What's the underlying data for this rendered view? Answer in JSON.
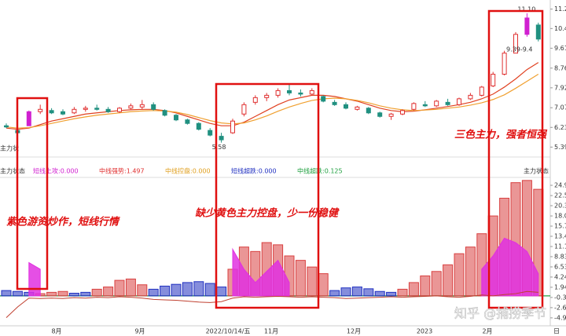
{
  "chart_data": [
    {
      "type": "candlestick",
      "ylim": [
        5.1,
        11.5
      ],
      "yticks": [
        11.28,
        10.45,
        9.61,
        8.76,
        7.92,
        7.07,
        6.23,
        5.39
      ],
      "up_color": "#e03030",
      "down_color": "#209080",
      "highlight_color": "#d020d0",
      "highlight": [
        2,
        46
      ],
      "ohlc": [
        [
          6.3,
          6.4,
          6.2,
          6.25
        ],
        [
          6.1,
          6.2,
          5.9,
          6.0
        ],
        [
          6.3,
          6.95,
          6.3,
          6.9
        ],
        [
          6.9,
          7.2,
          6.8,
          7.0
        ],
        [
          6.95,
          7.05,
          6.8,
          6.85
        ],
        [
          6.9,
          7.0,
          6.75,
          6.8
        ],
        [
          6.85,
          7.1,
          6.8,
          7.0
        ],
        [
          7.0,
          7.15,
          6.9,
          7.05
        ],
        [
          7.05,
          7.2,
          6.95,
          7.0
        ],
        [
          7.0,
          7.1,
          6.85,
          6.9
        ],
        [
          6.9,
          7.1,
          6.85,
          7.05
        ],
        [
          7.05,
          7.25,
          7.0,
          7.15
        ],
        [
          7.1,
          7.4,
          7.0,
          7.2
        ],
        [
          7.2,
          7.3,
          6.95,
          7.0
        ],
        [
          6.95,
          7.0,
          6.7,
          6.75
        ],
        [
          6.75,
          6.8,
          6.5,
          6.55
        ],
        [
          6.55,
          6.6,
          6.35,
          6.4
        ],
        [
          6.4,
          6.45,
          6.1,
          6.15
        ],
        [
          6.1,
          6.2,
          5.85,
          5.9
        ],
        [
          5.85,
          6.0,
          5.58,
          5.7
        ],
        [
          6.0,
          6.6,
          5.95,
          6.5
        ],
        [
          6.8,
          7.3,
          6.7,
          7.2
        ],
        [
          7.3,
          7.6,
          7.2,
          7.5
        ],
        [
          7.5,
          7.7,
          7.35,
          7.6
        ],
        [
          7.6,
          7.9,
          7.5,
          7.8
        ],
        [
          7.8,
          8.1,
          7.6,
          7.7
        ],
        [
          7.7,
          7.85,
          7.55,
          7.65
        ],
        [
          7.65,
          7.9,
          7.6,
          7.8
        ],
        [
          7.55,
          7.6,
          7.3,
          7.35
        ],
        [
          7.3,
          7.4,
          7.15,
          7.2
        ],
        [
          7.2,
          7.3,
          7.0,
          7.05
        ],
        [
          7.0,
          7.15,
          6.95,
          7.1
        ],
        [
          7.05,
          7.1,
          6.8,
          6.85
        ],
        [
          6.85,
          6.9,
          6.65,
          6.7
        ],
        [
          6.7,
          6.85,
          6.55,
          6.8
        ],
        [
          6.8,
          7.0,
          6.75,
          6.95
        ],
        [
          7.0,
          7.3,
          6.95,
          7.25
        ],
        [
          7.2,
          7.35,
          7.1,
          7.15
        ],
        [
          7.15,
          7.4,
          7.1,
          7.35
        ],
        [
          7.3,
          7.45,
          7.15,
          7.2
        ],
        [
          7.2,
          7.5,
          7.15,
          7.45
        ],
        [
          7.45,
          7.7,
          7.4,
          7.6
        ],
        [
          7.6,
          8.0,
          7.55,
          7.95
        ],
        [
          8.0,
          8.6,
          7.95,
          8.5
        ],
        [
          8.5,
          9.5,
          8.45,
          9.4
        ],
        [
          9.4,
          10.3,
          9.39,
          10.2
        ],
        [
          10.2,
          11.1,
          10.1,
          10.9
        ],
        [
          10.6,
          10.7,
          9.9,
          10.0
        ]
      ],
      "series": [
        {
          "color": "#e04020",
          "values": [
            6.2,
            6.15,
            6.2,
            6.35,
            6.5,
            6.6,
            6.7,
            6.8,
            6.85,
            6.9,
            6.95,
            6.98,
            7.0,
            7.0,
            6.95,
            6.85,
            6.7,
            6.55,
            6.4,
            6.3,
            6.3,
            6.45,
            6.7,
            6.95,
            7.2,
            7.4,
            7.5,
            7.6,
            7.6,
            7.55,
            7.45,
            7.35,
            7.2,
            7.05,
            6.95,
            6.9,
            6.92,
            6.98,
            7.05,
            7.12,
            7.2,
            7.3,
            7.45,
            7.65,
            7.95,
            8.3,
            8.7,
            9.0
          ]
        },
        {
          "color": "#f0a030",
          "values": [
            6.25,
            6.2,
            6.22,
            6.3,
            6.4,
            6.5,
            6.6,
            6.68,
            6.75,
            6.8,
            6.85,
            6.9,
            6.93,
            6.95,
            6.93,
            6.88,
            6.78,
            6.65,
            6.52,
            6.42,
            6.38,
            6.42,
            6.55,
            6.72,
            6.92,
            7.1,
            7.25,
            7.38,
            7.45,
            7.48,
            7.45,
            7.38,
            7.28,
            7.15,
            7.05,
            6.98,
            6.95,
            6.97,
            7.0,
            7.05,
            7.1,
            7.18,
            7.28,
            7.42,
            7.62,
            7.9,
            8.2,
            8.5
          ]
        }
      ],
      "price_labels": [
        {
          "index": 46,
          "value": 11.1,
          "label": "11.10"
        },
        {
          "index": 45,
          "value": 9.39,
          "label": "9.39-9.4"
        },
        {
          "index": 19,
          "value": 5.58,
          "label": "5.58"
        }
      ],
      "panel_label": "主力状"
    },
    {
      "type": "bar",
      "ylim": [
        -5.5,
        26.5
      ],
      "yticks": [
        {
          "value": 24.9,
          "label": "24.90"
        },
        22.59,
        20.31,
        {
          "value": 18.0,
          "label": "18.0"
        },
        15.71,
        13.42,
        11.12,
        8.83,
        6.53,
        4.24,
        1.94,
        -0.35,
        -2.65,
        -4.95
      ],
      "legend": [
        {
          "name": "主力状态",
          "color": "#333333"
        },
        {
          "name": "短线上攻:0.000",
          "color": "#d020d0"
        },
        {
          "name": "中线强势:1.497",
          "color": "#e03030"
        },
        {
          "name": "中线控盘:0.000",
          "color": "#e0a020"
        },
        {
          "name": "短线超跌:0.000",
          "color": "#2030c0"
        },
        {
          "name": "中线超跌:0.125",
          "color": "#20a040"
        }
      ],
      "right_label": "主力状态",
      "series": [
        {
          "name": "中线强势:1.497",
          "color": "#d84040",
          "values": [
            null,
            null,
            null,
            0.5,
            0.8,
            1.0,
            null,
            null,
            1.5,
            2.0,
            3.5,
            3.8,
            2.5,
            null,
            null,
            null,
            null,
            null,
            null,
            null,
            6.0,
            11.0,
            10.0,
            12.0,
            11.5,
            9.0,
            8.0,
            6.5,
            5.0,
            null,
            null,
            null,
            null,
            null,
            null,
            1.5,
            3.0,
            4.5,
            5.5,
            7.0,
            9.5,
            11.0,
            14.0,
            18.0,
            22.0,
            25.5,
            26.0,
            24.0
          ]
        },
        {
          "name": "短线超跌:0.000",
          "color": "#2030c0",
          "values": [
            1.2,
            1.0,
            0.8,
            null,
            null,
            null,
            0.6,
            0.8,
            null,
            null,
            null,
            null,
            null,
            1.5,
            2.2,
            2.6,
            3.0,
            3.2,
            2.8,
            2.0,
            null,
            null,
            null,
            null,
            null,
            null,
            null,
            null,
            null,
            1.2,
            1.8,
            2.0,
            1.6,
            1.0,
            0.8,
            null,
            null,
            null,
            null,
            null,
            null,
            null,
            null,
            null,
            null,
            null,
            null,
            null
          ]
        },
        {
          "name": "短线上攻:0.000",
          "color": "#e030e0",
          "style": "area",
          "values": [
            null,
            null,
            7.5,
            6.0,
            null,
            null,
            null,
            null,
            null,
            null,
            null,
            null,
            null,
            null,
            null,
            null,
            null,
            null,
            null,
            null,
            10.5,
            6.0,
            3.0,
            5.5,
            8.0,
            3.0,
            null,
            null,
            null,
            null,
            null,
            null,
            null,
            null,
            null,
            null,
            null,
            null,
            null,
            null,
            null,
            null,
            6.0,
            9.0,
            13.0,
            12.0,
            10.0,
            5.0
          ]
        },
        {
          "name": "中线超跌:0.125",
          "color": "#c04030",
          "style": "line",
          "values": [
            -4.9,
            -2.5,
            -0.5,
            -0.6,
            -0.5,
            -0.6,
            -0.4,
            -0.5,
            -0.3,
            -0.4,
            -0.2,
            -0.3,
            -0.5,
            -0.8,
            -0.9,
            -1.0,
            -1.2,
            -1.4,
            -1.5,
            -1.3,
            -0.5,
            -0.2,
            -0.3,
            -0.2,
            -0.1,
            -0.2,
            -0.3,
            -0.2,
            -0.3,
            -0.4,
            -0.6,
            -0.5,
            -0.4,
            -0.3,
            -0.2,
            -0.3,
            -0.2,
            -0.1,
            0.0,
            -0.2,
            -0.3,
            -0.1,
            0.2,
            0.0,
            0.3,
            0.5,
            1.0,
            0.8
          ]
        }
      ]
    }
  ],
  "x_labels": [
    "8月",
    "9月",
    "2022/10/14/五",
    "11月",
    "12月",
    "2023",
    "2月",
    "日"
  ],
  "annotations": [
    "紫色游资炒作，短线行情",
    "缺少黄色主力控盘，少一份稳健",
    "三色主力，强者恒强"
  ],
  "watermark": "知乎 @捕捞季节"
}
